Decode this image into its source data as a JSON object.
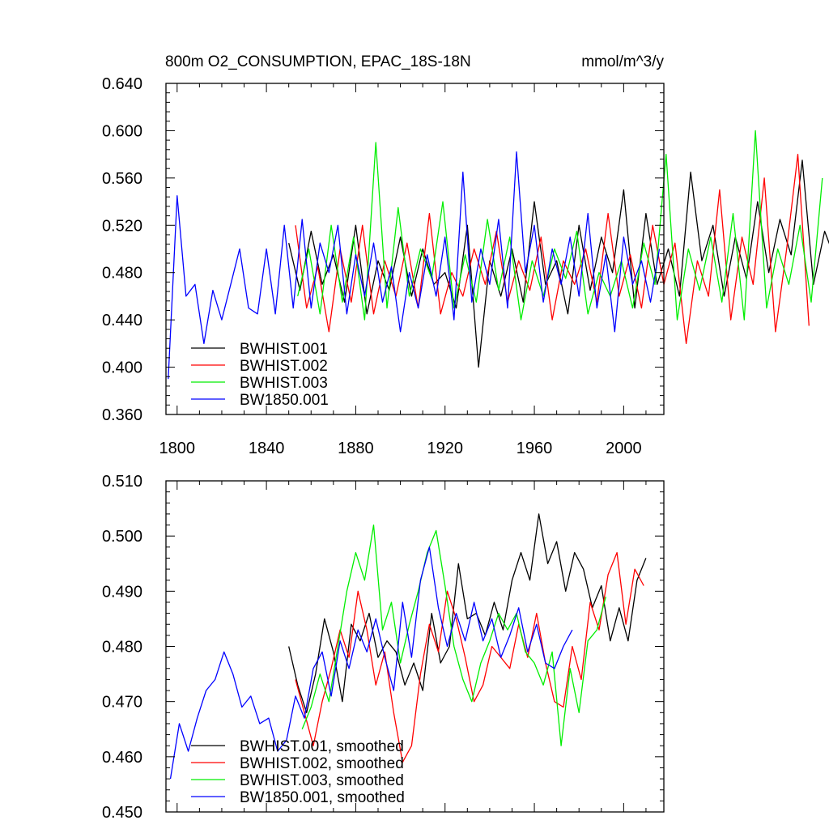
{
  "figure": {
    "panels": [
      {
        "title_left": "800m O2_CONSUMPTION, EPAC_18S-18N",
        "title_right": "mmol/m^3/y",
        "legend": [
          "BWHIST.001",
          "BWHIST.002",
          "BWHIST.003",
          "BW1850.001"
        ]
      },
      {
        "legend": [
          "BWHIST.001, smoothed",
          "BWHIST.002, smoothed",
          "BWHIST.003, smoothed",
          "BW1850.001, smoothed"
        ]
      }
    ]
  },
  "chart_data": [
    {
      "type": "line",
      "title": "800m O2_CONSUMPTION, EPAC_18S-18N",
      "units": "mmol/m^3/y",
      "xlim": [
        1795,
        2018
      ],
      "ylim": [
        0.36,
        0.64
      ],
      "xticks": [
        1800,
        1840,
        1880,
        1920,
        1960,
        2000
      ],
      "yticks": [
        0.36,
        0.4,
        0.44,
        0.48,
        0.52,
        0.56,
        0.6,
        0.64
      ],
      "ytick_labels": [
        "0.360",
        "0.400",
        "0.440",
        "0.480",
        "0.520",
        "0.560",
        "0.600",
        "0.640"
      ],
      "legend_position": "lower-left",
      "series": [
        {
          "name": "BWHIST.001",
          "color": "#000000",
          "x_start": 1850,
          "x_step": 5,
          "values": [
            0.505,
            0.465,
            0.515,
            0.47,
            0.495,
            0.455,
            0.52,
            0.445,
            0.49,
            0.465,
            0.51,
            0.46,
            0.5,
            0.47,
            0.48,
            0.45,
            0.52,
            0.4,
            0.49,
            0.46,
            0.5,
            0.455,
            0.54,
            0.47,
            0.49,
            0.445,
            0.52,
            0.465,
            0.51,
            0.48,
            0.55,
            0.45,
            0.53,
            0.47,
            0.5,
            0.46,
            0.565,
            0.49,
            0.52,
            0.46,
            0.51,
            0.475,
            0.54,
            0.48,
            0.525,
            0.495,
            0.575,
            0.47,
            0.515,
            0.49
          ]
        },
        {
          "name": "BWHIST.002",
          "color": "#ff0000",
          "x_start": 1853,
          "x_step": 5,
          "values": [
            0.52,
            0.45,
            0.485,
            0.43,
            0.5,
            0.455,
            0.52,
            0.445,
            0.49,
            0.46,
            0.505,
            0.45,
            0.53,
            0.445,
            0.48,
            0.46,
            0.5,
            0.47,
            0.515,
            0.455,
            0.49,
            0.465,
            0.51,
            0.44,
            0.49,
            0.47,
            0.5,
            0.455,
            0.53,
            0.46,
            0.495,
            0.45,
            0.52,
            0.47,
            0.505,
            0.42,
            0.49,
            0.46,
            0.55,
            0.44,
            0.51,
            0.47,
            0.56,
            0.43,
            0.5,
            0.58,
            0.435
          ]
        },
        {
          "name": "BWHIST.003",
          "color": "#00ee00",
          "x_start": 1854,
          "x_step": 5,
          "values": [
            0.46,
            0.5,
            0.445,
            0.52,
            0.455,
            0.51,
            0.44,
            0.59,
            0.45,
            0.535,
            0.46,
            0.5,
            0.475,
            0.54,
            0.45,
            0.495,
            0.455,
            0.525,
            0.465,
            0.51,
            0.44,
            0.49,
            0.46,
            0.5,
            0.475,
            0.515,
            0.445,
            0.48,
            0.46,
            0.49,
            0.45,
            0.505,
            0.47,
            0.58,
            0.44,
            0.5,
            0.465,
            0.51,
            0.455,
            0.53,
            0.44,
            0.6,
            0.45,
            0.5,
            0.47,
            0.52,
            0.455,
            0.56
          ]
        },
        {
          "name": "BW1850.001",
          "color": "#0000ff",
          "x_start": 1796,
          "x_step": 4,
          "values": [
            0.39,
            0.545,
            0.46,
            0.47,
            0.42,
            0.465,
            0.44,
            0.47,
            0.5,
            0.45,
            0.445,
            0.5,
            0.445,
            0.52,
            0.45,
            0.525,
            0.45,
            0.505,
            0.48,
            0.52,
            0.445,
            0.495,
            0.46,
            0.505,
            0.455,
            0.485,
            0.43,
            0.48,
            0.45,
            0.495,
            0.46,
            0.51,
            0.44,
            0.565,
            0.455,
            0.5,
            0.47,
            0.525,
            0.45,
            0.582,
            0.48,
            0.52,
            0.455,
            0.5,
            0.47,
            0.51,
            0.46,
            0.53,
            0.45,
            0.495,
            0.43,
            0.51,
            0.47,
            0.49,
            0.455,
            0.5
          ]
        }
      ]
    },
    {
      "type": "line",
      "title": "",
      "xlim": [
        1795,
        2018
      ],
      "ylim": [
        0.45,
        0.51
      ],
      "xticks": [
        1800,
        1840,
        1880,
        1920,
        1960,
        2000
      ],
      "yticks": [
        0.45,
        0.46,
        0.47,
        0.48,
        0.49,
        0.5,
        0.51
      ],
      "ytick_labels": [
        "0.450",
        "0.460",
        "0.470",
        "0.480",
        "0.490",
        "0.500",
        "0.510"
      ],
      "legend_position": "lower-left",
      "series": [
        {
          "name": "BWHIST.001, smoothed",
          "color": "#000000",
          "x_start": 1850,
          "x_step": 4,
          "values": [
            0.48,
            0.473,
            0.468,
            0.475,
            0.485,
            0.479,
            0.47,
            0.484,
            0.481,
            0.486,
            0.478,
            0.481,
            0.479,
            0.473,
            0.477,
            0.472,
            0.486,
            0.477,
            0.48,
            0.495,
            0.485,
            0.486,
            0.482,
            0.488,
            0.483,
            0.492,
            0.497,
            0.492,
            0.504,
            0.495,
            0.499,
            0.49,
            0.497,
            0.494,
            0.487,
            0.491,
            0.481,
            0.487,
            0.481,
            0.492,
            0.496
          ]
        },
        {
          "name": "BWHIST.002, smoothed",
          "color": "#ff0000",
          "x_start": 1853,
          "x_step": 4,
          "values": [
            0.474,
            0.468,
            0.462,
            0.47,
            0.476,
            0.483,
            0.478,
            0.49,
            0.483,
            0.473,
            0.479,
            0.468,
            0.459,
            0.462,
            0.475,
            0.484,
            0.479,
            0.49,
            0.485,
            0.478,
            0.47,
            0.473,
            0.48,
            0.478,
            0.476,
            0.484,
            0.478,
            0.486,
            0.477,
            0.47,
            0.469,
            0.48,
            0.474,
            0.488,
            0.483,
            0.493,
            0.497,
            0.484,
            0.494,
            0.491
          ]
        },
        {
          "name": "BWHIST.003, smoothed",
          "color": "#00ee00",
          "x_start": 1856,
          "x_step": 4,
          "values": [
            0.465,
            0.469,
            0.475,
            0.47,
            0.48,
            0.49,
            0.497,
            0.492,
            0.502,
            0.483,
            0.488,
            0.477,
            0.484,
            0.49,
            0.497,
            0.501,
            0.491,
            0.48,
            0.474,
            0.47,
            0.477,
            0.481,
            0.486,
            0.483,
            0.486,
            0.479,
            0.477,
            0.473,
            0.479,
            0.462,
            0.476,
            0.468,
            0.481,
            0.483,
            0.489
          ]
        },
        {
          "name": "BW1850.001, smoothed",
          "color": "#0000ff",
          "x_start": 1797,
          "x_step": 4,
          "values": [
            0.456,
            0.466,
            0.461,
            0.467,
            0.472,
            0.474,
            0.479,
            0.475,
            0.469,
            0.471,
            0.466,
            0.467,
            0.461,
            0.463,
            0.471,
            0.467,
            0.476,
            0.479,
            0.471,
            0.481,
            0.476,
            0.483,
            0.479,
            0.485,
            0.478,
            0.472,
            0.488,
            0.478,
            0.492,
            0.498,
            0.487,
            0.48,
            0.486,
            0.481,
            0.488,
            0.481,
            0.485,
            0.478,
            0.482,
            0.487,
            0.479,
            0.484,
            0.477,
            0.476,
            0.48,
            0.483
          ]
        }
      ]
    }
  ]
}
